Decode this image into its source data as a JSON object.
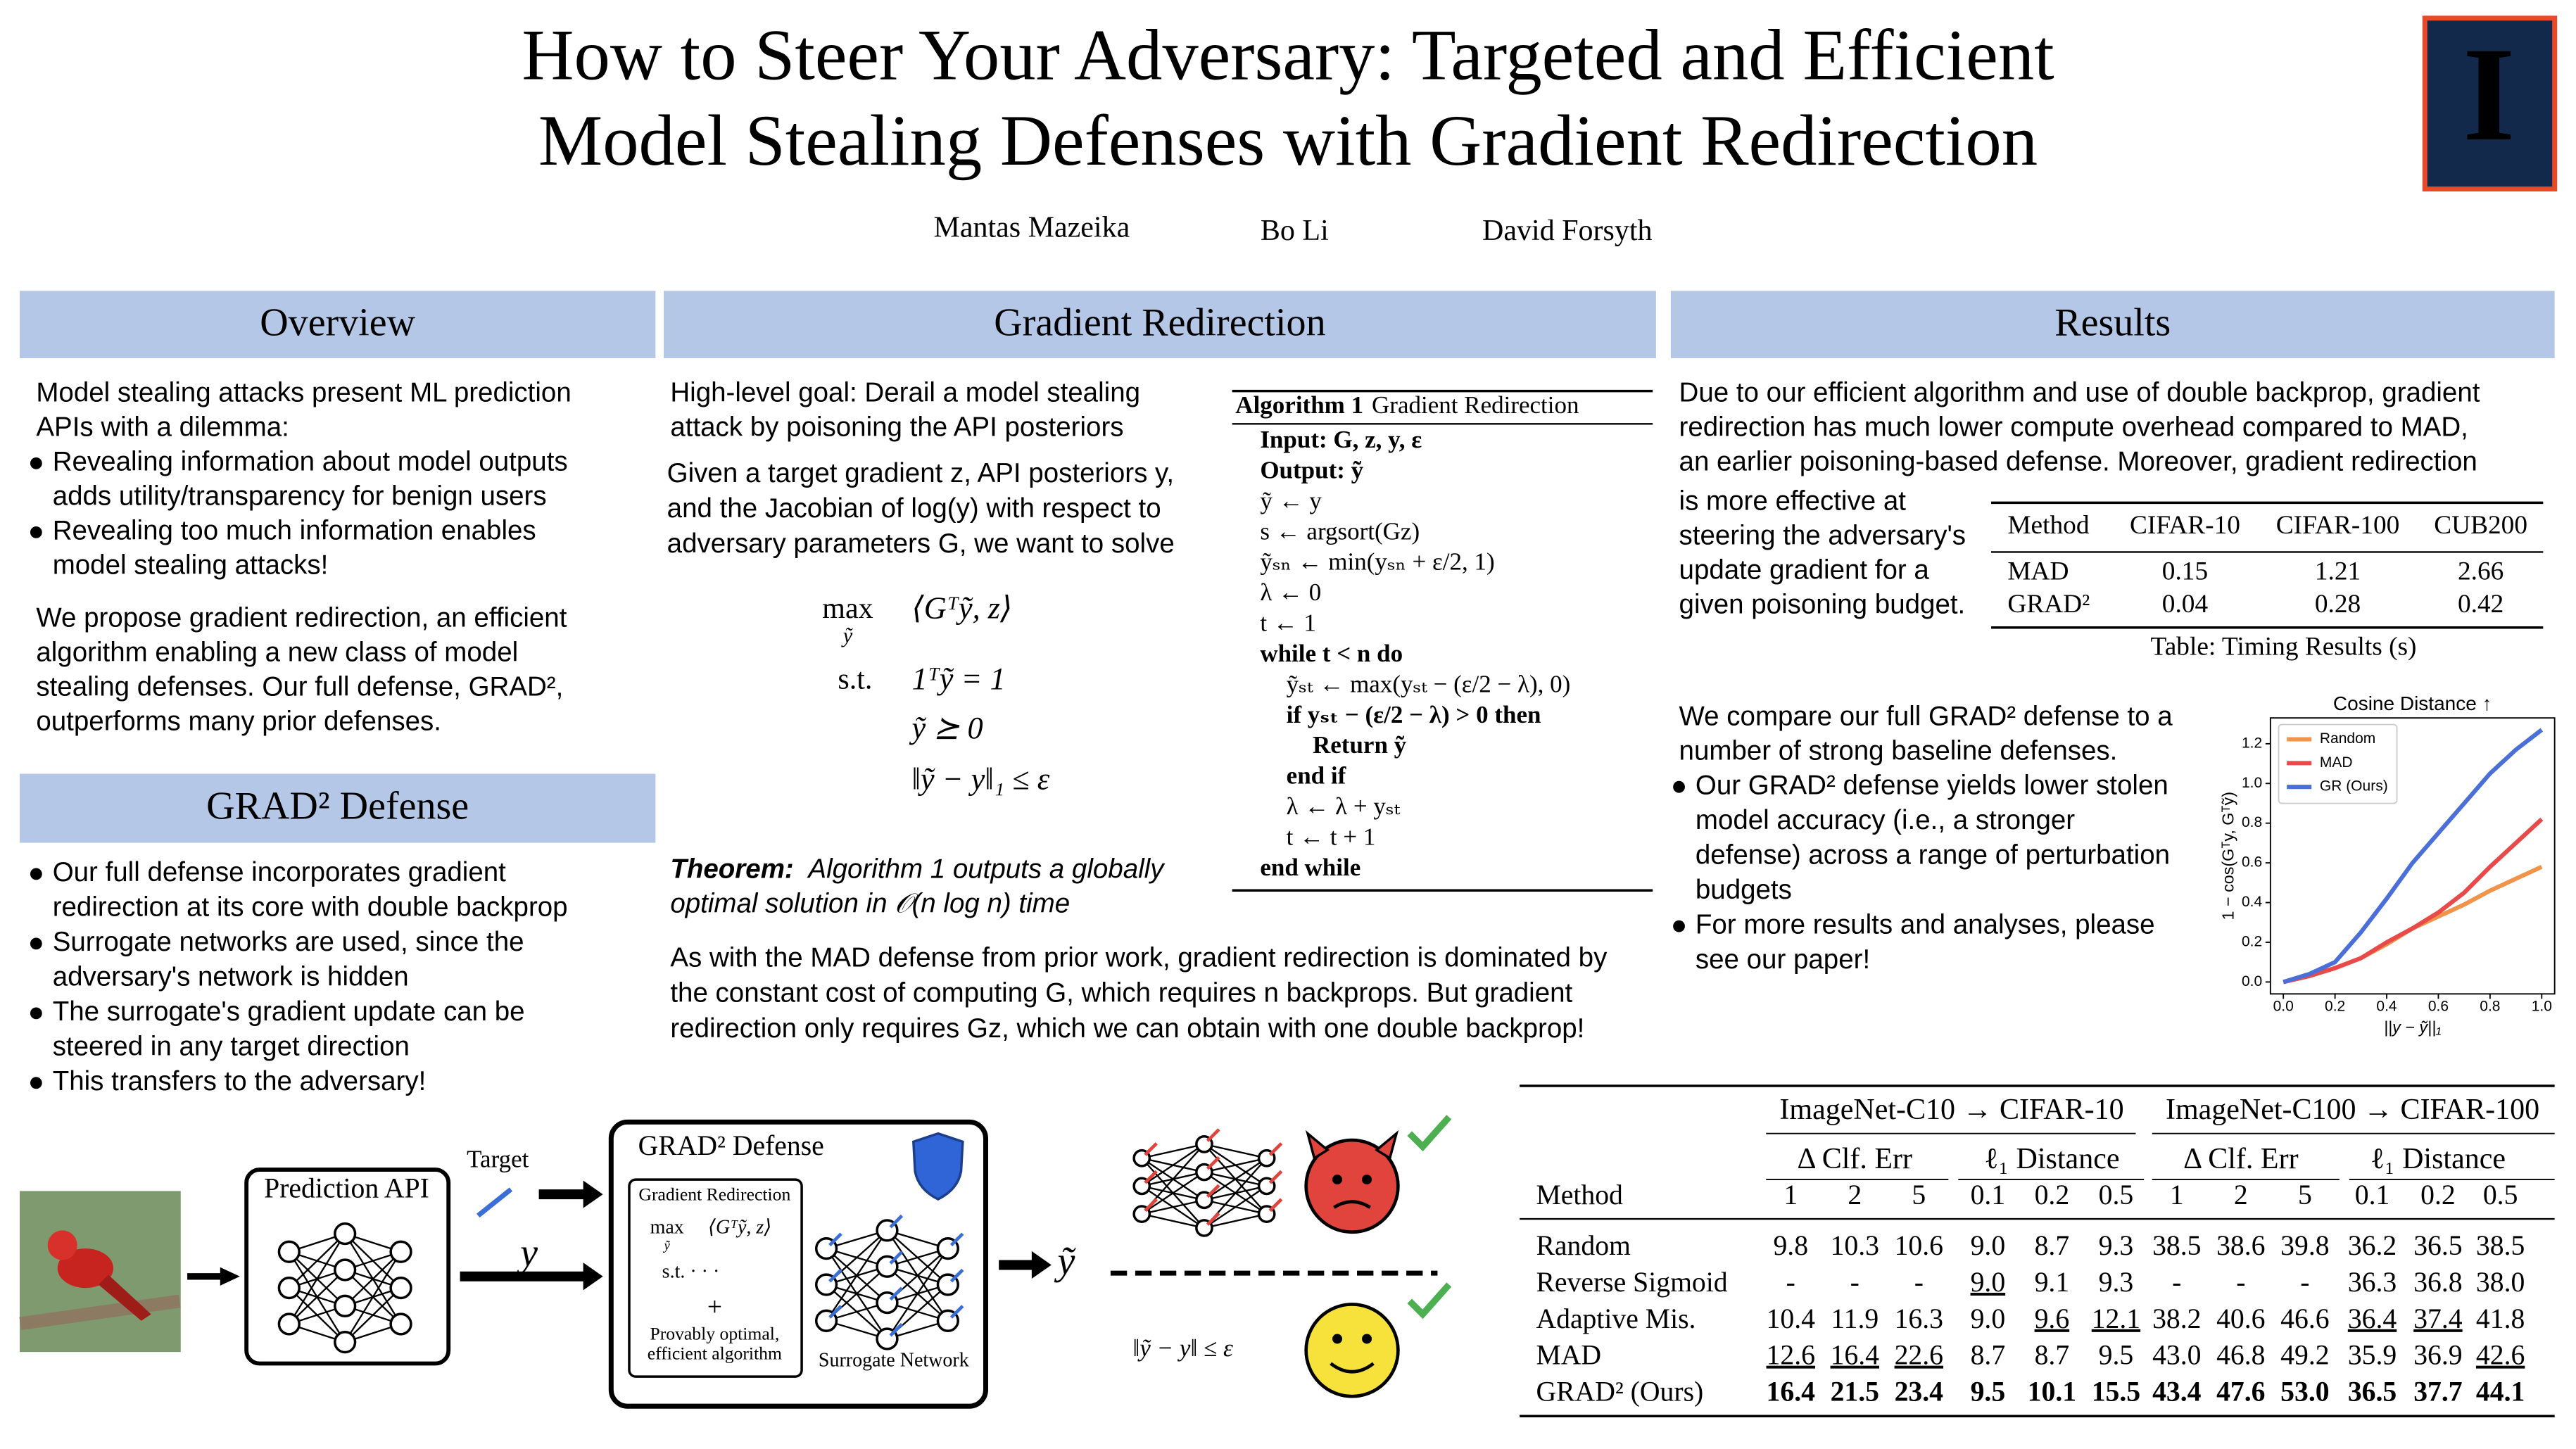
{
  "header": {
    "title": [
      "How to Steer Your Adversary: Targeted and Efficient",
      "Model Stealing Defenses with Gradient Redirection"
    ],
    "authors": [
      "Mantas Mazeika",
      "Bo Li",
      "David Forsyth"
    ],
    "logo": "I"
  },
  "overview": {
    "heading": "Overview",
    "intro": [
      "Model stealing attacks present ML prediction",
      "APIs with a dilemma:"
    ],
    "bullets": [
      [
        "Revealing information about model outputs",
        "adds utility/transparency for benign users"
      ],
      [
        "Revealing too much information enables",
        "model stealing attacks!"
      ]
    ],
    "proposal": [
      "We propose gradient redirection, an efficient",
      "algorithm enabling a new class of model",
      "stealing defenses. Our full defense, GRAD²,",
      "outperforms many prior defenses."
    ]
  },
  "defense": {
    "heading": "GRAD² Defense",
    "bullets": [
      [
        "Our full defense incorporates gradient",
        "redirection at its core with double backprop"
      ],
      [
        "Surrogate networks are used, since the",
        "adversary's network is hidden"
      ],
      [
        "The surrogate's gradient update can be",
        "steered in any target direction"
      ],
      [
        "This transfers to the adversary!"
      ]
    ]
  },
  "redirection": {
    "heading": "Gradient Redirection",
    "goal": [
      "High-level goal: Derail a model stealing",
      "attack by poisoning the API posteriors"
    ],
    "setup": [
      "Given a target gradient z, API posteriors y,",
      "and the Jacobian of log(y) with respect to",
      "adversary parameters G, we want to solve"
    ],
    "problem": {
      "operator": "max",
      "operator_sub": "ỹ",
      "objective": "⟨Gᵀỹ, z⟩",
      "subject_to": "s.t.",
      "constraints": [
        "1ᵀỹ = 1",
        "ỹ ⪰ 0",
        "‖ỹ − y‖₁ ≤ ε"
      ]
    },
    "theorem_label": "Theorem:",
    "theorem": [
      "Algorithm 1 outputs a globally",
      "optimal solution in 𝒪(n log n) time"
    ],
    "cost": [
      "As with the MAD defense from prior work, gradient redirection is dominated by",
      "the constant cost of computing G, which requires n backprops. But gradient",
      "redirection only requires Gz, which we can obtain with one double backprop!"
    ]
  },
  "algorithm": {
    "label": "Algorithm 1",
    "name": "Gradient Redirection",
    "lines": [
      "Input: G, z, y, ε",
      "Output: ỹ",
      "ỹ ← y",
      "s ← argsort(Gz)",
      "ỹₛₙ ← min(yₛₙ + ε/2, 1)",
      "λ ← 0",
      "t ← 1",
      "while t < n do",
      "ỹₛₜ ← max(yₛₜ − (ε/2 − λ), 0)",
      "if yₛₜ − (ε/2 − λ) > 0 then",
      "Return ỹ",
      "end if",
      "λ ← λ + yₛₜ",
      "t ← t + 1",
      "end while"
    ]
  },
  "results": {
    "heading": "Results",
    "intro": [
      "Due to our efficient algorithm and use of double backprop, gradient",
      "redirection has much lower compute overhead compared to MAD,",
      "an earlier poisoning-based defense. Moreover, gradient redirection"
    ],
    "intro_narrow": [
      "is more effective at",
      "steering the adversary's",
      "update gradient for a",
      "given poisoning budget."
    ],
    "comparison": [
      "We compare our full GRAD² defense to a",
      "number of strong baseline defenses."
    ],
    "bullets": [
      [
        "Our GRAD² defense yields lower stolen",
        "model accuracy (i.e., a stronger",
        "defense) across a range of perturbation",
        "budgets"
      ],
      [
        "For more results and analyses, please",
        "see our paper!"
      ]
    ]
  },
  "timing_table": {
    "columns": [
      "Method",
      "CIFAR-10",
      "CIFAR-100",
      "CUB200"
    ],
    "rows": [
      [
        "MAD",
        "0.15",
        "1.21",
        "2.66"
      ],
      [
        "GRAD²",
        "0.04",
        "0.28",
        "0.42"
      ]
    ],
    "caption": "Table: Timing Results (s)"
  },
  "results_table": {
    "groups": [
      "ImageNet-C10 → CIFAR-10",
      "ImageNet-C100 → CIFAR-100"
    ],
    "metrics": [
      "Δ Clf. Err",
      "ℓ₁ Distance",
      "Δ Clf. Err",
      "ℓ₁ Distance"
    ],
    "columns": [
      "Method",
      "1",
      "2",
      "5",
      "0.1",
      "0.2",
      "0.5",
      "1",
      "2",
      "5",
      "0.1",
      "0.2",
      "0.5"
    ],
    "rows": [
      [
        "Random",
        "9.8",
        "10.3",
        "10.6",
        "9.0",
        "8.7",
        "9.3",
        "38.5",
        "38.6",
        "39.8",
        "36.2",
        "36.5",
        "38.5"
      ],
      [
        "Reverse Sigmoid",
        "-",
        "-",
        "-",
        "9.0",
        "9.1",
        "9.3",
        "-",
        "-",
        "-",
        "36.3",
        "36.8",
        "38.0"
      ],
      [
        "Adaptive Mis.",
        "10.4",
        "11.9",
        "16.3",
        "9.0",
        "9.6",
        "12.1",
        "38.2",
        "40.6",
        "46.6",
        "36.4",
        "37.4",
        "41.8"
      ],
      [
        "MAD",
        "12.6",
        "16.4",
        "22.6",
        "8.7",
        "8.7",
        "9.5",
        "43.0",
        "46.8",
        "49.2",
        "35.9",
        "36.9",
        "42.6"
      ],
      [
        "GRAD² (Ours)",
        "16.4",
        "21.5",
        "23.4",
        "9.5",
        "10.1",
        "15.5",
        "43.4",
        "47.6",
        "53.0",
        "36.5",
        "37.7",
        "44.1"
      ]
    ],
    "underlined": [
      [
        1,
        4
      ],
      [
        2,
        5
      ],
      [
        2,
        6
      ],
      [
        2,
        10
      ],
      [
        2,
        11
      ],
      [
        3,
        1
      ],
      [
        3,
        2
      ],
      [
        3,
        3
      ],
      [
        3,
        12
      ]
    ],
    "bold_rows": [
      4
    ]
  },
  "diagram": {
    "prediction_api": "Prediction API",
    "target": "Target",
    "posteriors": "y",
    "defense_title": "GRAD² Defense",
    "inner_title": "Gradient Redirection",
    "inner_max": "max",
    "inner_sub": "ỹ",
    "inner_objective": "⟨Gᵀỹ, z⟩",
    "inner_st": "s.t.   · · ·",
    "plus": "+",
    "inner_note": [
      "Provably optimal,",
      "efficient algorithm"
    ],
    "surrogate": "Surrogate Network",
    "output": "ỹ",
    "budget": "‖ỹ − y‖ ≤ ε"
  },
  "chart_data": {
    "type": "line",
    "title": "Cosine Distance ↑",
    "xlabel": "||y − ỹ||₁",
    "ylabel": "1 − cos(Gᵀy, Gᵀỹ)",
    "x": [
      0,
      0.1,
      0.2,
      0.3,
      0.4,
      0.5,
      0.6,
      0.7,
      0.8,
      0.9,
      1.0
    ],
    "series": [
      {
        "name": "Random",
        "color": "#f0944a",
        "values": [
          0,
          0.03,
          0.07,
          0.12,
          0.19,
          0.27,
          0.33,
          0.39,
          0.46,
          0.52,
          0.58
        ]
      },
      {
        "name": "MAD",
        "color": "#e84a4a",
        "values": [
          0,
          0.03,
          0.07,
          0.12,
          0.2,
          0.27,
          0.35,
          0.45,
          0.58,
          0.7,
          0.82
        ]
      },
      {
        "name": "GR (Ours)",
        "color": "#4a6fd8",
        "values": [
          0,
          0.04,
          0.1,
          0.25,
          0.42,
          0.6,
          0.75,
          0.9,
          1.05,
          1.17,
          1.27
        ]
      }
    ],
    "xlim": [
      -0.05,
      1.05
    ],
    "ylim": [
      -0.06,
      1.33
    ],
    "xticks": [
      {
        "value": 0,
        "label": "0.0"
      },
      {
        "value": 0.2,
        "label": "0.2"
      },
      {
        "value": 0.4,
        "label": "0.4"
      },
      {
        "value": 0.6,
        "label": "0.6"
      },
      {
        "value": 0.8,
        "label": "0.8"
      },
      {
        "value": 1,
        "label": "1.0"
      }
    ],
    "yticks": [
      {
        "value": 0,
        "label": "0.0"
      },
      {
        "value": 0.2,
        "label": "0.2"
      },
      {
        "value": 0.4,
        "label": "0.4"
      },
      {
        "value": 0.6,
        "label": "0.6"
      },
      {
        "value": 0.8,
        "label": "0.8"
      },
      {
        "value": 1,
        "label": "1.0"
      },
      {
        "value": 1.2,
        "label": "1.2"
      }
    ],
    "legend": "upper left",
    "grid": false
  }
}
